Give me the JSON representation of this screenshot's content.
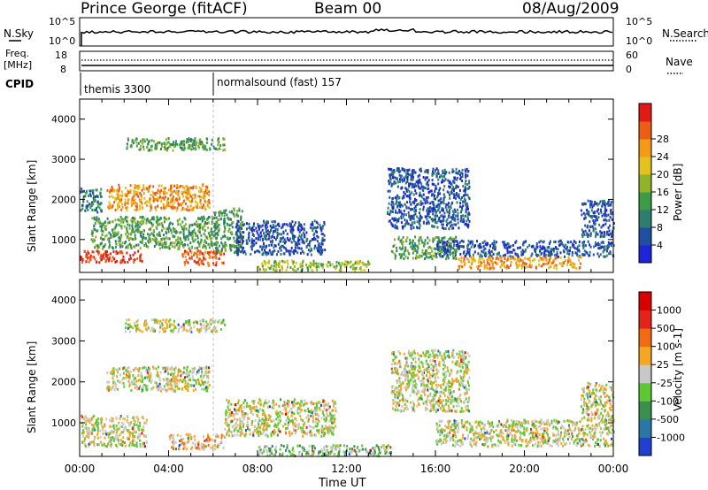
{
  "header": {
    "station": "Prince George (fitACF)",
    "beam": "Beam 00",
    "date": "08/Aug/2009"
  },
  "side_labels": {
    "nsky": "N.Sky",
    "freq_line1": "Freq.",
    "freq_line2": "[MHz]",
    "cpid": "CPID",
    "nsearch": "N.Search",
    "nave": "Nave"
  },
  "status_axes": {
    "nsky_ticks": [
      "10^5",
      "10^0"
    ],
    "nsearch_ticks": [
      "10^5",
      "10^0"
    ],
    "freq_ticks": [
      "18",
      "8"
    ],
    "nave_ticks": [
      "60",
      "0"
    ]
  },
  "cpid_segments": [
    {
      "label": "themis 3300",
      "start_hour": 0.0
    },
    {
      "label": "normalsound (fast) 157",
      "start_hour": 6.0
    }
  ],
  "time_axis": {
    "label": "Time UT",
    "ticks": [
      "00:00",
      "04:00",
      "08:00",
      "12:00",
      "16:00",
      "20:00",
      "00:00"
    ]
  },
  "chart_data": [
    {
      "type": "heatmap",
      "title": "",
      "xlabel": "Time UT",
      "ylabel": "Slant Range [km]",
      "xlim_hours": [
        0,
        24
      ],
      "ylim": [
        180,
        4500
      ],
      "y_ticks": [
        1000,
        2000,
        3000,
        4000
      ],
      "colorbar": {
        "label": "Power [dB]",
        "tick_labels": [
          "4",
          "8",
          "12",
          "16",
          "20",
          "24",
          "28"
        ],
        "colors": [
          "#1c25d8",
          "#1f4fa0",
          "#2f7d6e",
          "#3c9b47",
          "#8fb428",
          "#e2c21b",
          "#f39a16",
          "#ec5d16",
          "#e01b16"
        ]
      },
      "scatter_regions": [
        {
          "t0": 0.0,
          "t1": 1.0,
          "r0": 1700,
          "r1": 2300,
          "level": 2
        },
        {
          "t0": 0.0,
          "t1": 2.8,
          "r0": 450,
          "r1": 750,
          "level": 8
        },
        {
          "t0": 0.5,
          "t1": 6.2,
          "r0": 800,
          "r1": 1600,
          "level": 3
        },
        {
          "t0": 1.2,
          "t1": 5.8,
          "r0": 1750,
          "r1": 2400,
          "level": 6
        },
        {
          "t0": 2.0,
          "t1": 6.5,
          "r0": 3250,
          "r1": 3550,
          "level": 3
        },
        {
          "t0": 4.5,
          "t1": 6.5,
          "r0": 380,
          "r1": 750,
          "level": 7
        },
        {
          "t0": 6.0,
          "t1": 7.3,
          "r0": 700,
          "r1": 1800,
          "level": 3
        },
        {
          "t0": 7.0,
          "t1": 11.0,
          "r0": 650,
          "r1": 1500,
          "level": 1
        },
        {
          "t0": 8.0,
          "t1": 13.0,
          "r0": 250,
          "r1": 500,
          "level": 4
        },
        {
          "t0": 13.8,
          "t1": 17.5,
          "r0": 1300,
          "r1": 2800,
          "level": 1
        },
        {
          "t0": 14.0,
          "t1": 17.0,
          "r0": 550,
          "r1": 1100,
          "level": 3
        },
        {
          "t0": 16.0,
          "t1": 24.0,
          "r0": 600,
          "r1": 1000,
          "level": 1
        },
        {
          "t0": 17.0,
          "t1": 22.5,
          "r0": 300,
          "r1": 600,
          "level": 6
        },
        {
          "t0": 22.5,
          "t1": 24.0,
          "r0": 1100,
          "r1": 2000,
          "level": 1
        }
      ]
    },
    {
      "type": "heatmap",
      "title": "",
      "xlabel": "Time UT",
      "ylabel": "Slant Range [km]",
      "xlim_hours": [
        0,
        24
      ],
      "ylim": [
        180,
        4500
      ],
      "y_ticks": [
        1000,
        2000,
        3000,
        4000
      ],
      "colorbar": {
        "label": "Velocity [m s-1]",
        "tick_labels": [
          "1000",
          "500",
          "100",
          "25",
          "-25",
          "-100",
          "-500",
          "-1000"
        ],
        "colors": [
          "#2140d2",
          "#2a77a6",
          "#3b8e4b",
          "#5ec734",
          "#c8c8c8",
          "#f5a623",
          "#f06b14",
          "#e3241b",
          "#d90000"
        ]
      },
      "scatter_regions": [
        {
          "t0": 0.0,
          "t1": 3.0,
          "r0": 450,
          "r1": 1200,
          "level": 4
        },
        {
          "t0": 1.2,
          "t1": 5.8,
          "r0": 1800,
          "r1": 2400,
          "level": 4
        },
        {
          "t0": 2.0,
          "t1": 6.5,
          "r0": 3250,
          "r1": 3550,
          "level": 4
        },
        {
          "t0": 4.0,
          "t1": 6.5,
          "r0": 380,
          "r1": 750,
          "level": 5
        },
        {
          "t0": 6.5,
          "t1": 11.5,
          "r0": 700,
          "r1": 1600,
          "level": 4
        },
        {
          "t0": 8.0,
          "t1": 14.0,
          "r0": 220,
          "r1": 480,
          "level": 3
        },
        {
          "t0": 14.0,
          "t1": 17.5,
          "r0": 1300,
          "r1": 2800,
          "level": 4
        },
        {
          "t0": 16.0,
          "t1": 24.0,
          "r0": 450,
          "r1": 1100,
          "level": 4
        },
        {
          "t0": 22.5,
          "t1": 24.0,
          "r0": 1100,
          "r1": 2000,
          "level": 4
        }
      ]
    }
  ]
}
